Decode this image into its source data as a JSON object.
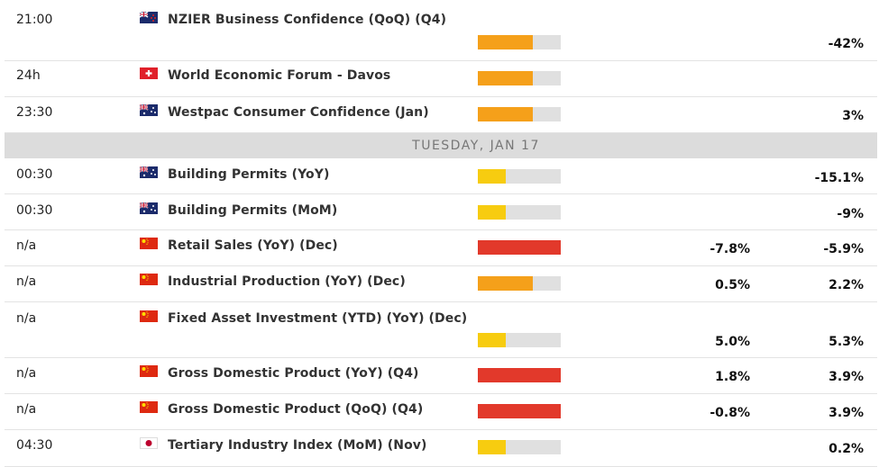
{
  "day_header": "TUESDAY, JAN 17",
  "rows": [
    {
      "time": "21:00",
      "event": "NZIER Business Confidence (QoQ) (Q4)",
      "impact": 2,
      "impact_color": "#f5a01a",
      "forecast": null,
      "previous": "-42%"
    },
    {
      "time": "24h",
      "event": "World Economic Forum - Davos",
      "impact": 2,
      "impact_color": "#f5a01a",
      "forecast": null,
      "previous": null
    },
    {
      "time": "23:30",
      "event": "Westpac Consumer Confidence (Jan)",
      "impact": 2,
      "impact_color": "#f5a01a",
      "forecast": null,
      "previous": "3%"
    },
    {
      "time": "00:30",
      "event": "Building Permits (YoY)",
      "impact": 1,
      "impact_color": "#f7cc10",
      "forecast": null,
      "previous": "-15.1%"
    },
    {
      "time": "00:30",
      "event": "Building Permits (MoM)",
      "impact": 1,
      "impact_color": "#f7cc10",
      "forecast": null,
      "previous": "-9%"
    },
    {
      "time": "n/a",
      "event": "Retail Sales (YoY) (Dec)",
      "impact": 3,
      "impact_color": "#e2392b",
      "forecast": "-7.8%",
      "previous": "-5.9%"
    },
    {
      "time": "n/a",
      "event": "Industrial Production (YoY) (Dec)",
      "impact": 2,
      "impact_color": "#f5a01a",
      "forecast": "0.5%",
      "previous": "2.2%"
    },
    {
      "time": "n/a",
      "event": "Fixed Asset Investment (YTD) (YoY) (Dec)",
      "impact": 1,
      "impact_color": "#f7cc10",
      "forecast": "5.0%",
      "previous": "5.3%"
    },
    {
      "time": "n/a",
      "event": "Gross Domestic Product (YoY) (Q4)",
      "impact": 3,
      "impact_color": "#e2392b",
      "forecast": "1.8%",
      "previous": "3.9%"
    },
    {
      "time": "n/a",
      "event": "Gross Domestic Product (QoQ) (Q4)",
      "impact": 3,
      "impact_color": "#e2392b",
      "forecast": "-0.8%",
      "previous": "3.9%"
    },
    {
      "time": "04:30",
      "event": "Tertiary Industry Index (MoM) (Nov)",
      "impact": 1,
      "impact_color": "#f7cc10",
      "forecast": null,
      "previous": "0.2%"
    }
  ],
  "impact_max": 3
}
